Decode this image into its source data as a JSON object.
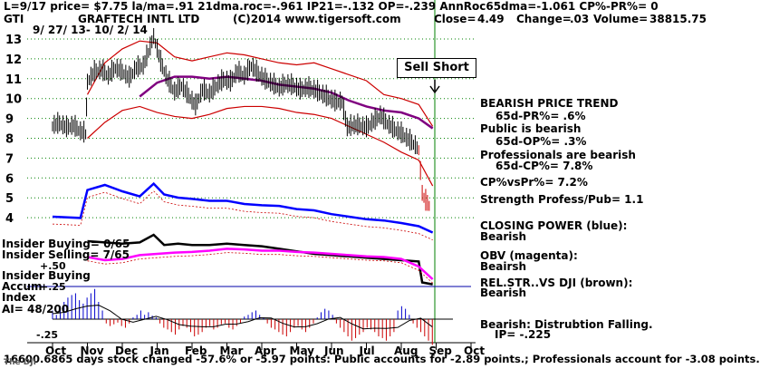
{
  "header": {
    "line1": "L=9/17   price= $7.75  la/ma=.91 21dma.roc=-.961 IP21=-.132 OP=-.239 AnnRoc65dma=-1.061 CP%-PR%=  0",
    "ticker": "GTI",
    "company": "GRAFTECH INTL LTD",
    "copyright": "(C)2014 www.tigersoft.com",
    "close_label": "Close=",
    "close_value": "4.49",
    "change_label": "Change=",
    "change_value": ".03",
    "volume_label": "Volume=",
    "volume_value": "38815.75",
    "date_range": "9/ 27/ 13-  10/ 2/ 14"
  },
  "annotations": {
    "sell_short": "Sell Short"
  },
  "right_panel": [
    {
      "key": "bearish_trend",
      "text": "BEARISH PRICE TREND"
    },
    {
      "key": "pr",
      "text": "65d-PR%= .6%"
    },
    {
      "key": "public",
      "text": "Public is bearish"
    },
    {
      "key": "op",
      "text": "65d-OP%= .3%"
    },
    {
      "key": "professionals",
      "text": "Professionals are bearish"
    },
    {
      "key": "cp",
      "text": "65d-CP%= 7.8%"
    },
    {
      "key": "cpvspr",
      "text": "CP%vsPr%=  7.2%"
    },
    {
      "key": "strength",
      "text": "Strength Profess/Pub= 1.1"
    },
    {
      "key": "closing_power",
      "text": "CLOSING POWER (blue):"
    },
    {
      "key": "closing_power_val",
      "text": "Bearish"
    },
    {
      "key": "obv",
      "text": "OBV (magenta):"
    },
    {
      "key": "obv_val",
      "text": "Beairsh"
    },
    {
      "key": "relstr",
      "text": "REL.STR..VS DJI (brown):"
    },
    {
      "key": "relstr_val",
      "text": "Bearish"
    },
    {
      "key": "distribution",
      "text": "Bearish:  Distrubtion Falling."
    },
    {
      "key": "ip",
      "text": "IP= -.225"
    }
  ],
  "left_panel": {
    "insider_buying": "Insider Buying= 0/65",
    "insider_selling": "Insider Selling= 7/65",
    "plus50": "+.50",
    "insider_buying2": "Insider Buying",
    "accum": "Accum",
    "plus25": "+.25",
    "index": "Index",
    "ai": "AI= 48/200",
    "minus25": "-.25"
  },
  "footer": "16600.6865 days stock changed -57.6% or -5.97 points:  Public accounts for -2.89 points.;  Professionals account for -3.08 points.",
  "footer_overlap": "The DJI",
  "colors": {
    "price_bars": "#000000",
    "bands": "#cc0000",
    "ma": "#800080",
    "grid": "#008000",
    "closing_power": "#0000ff",
    "obv": "#ff00ff",
    "rel_str": "#000000",
    "accum_pos": "#0000cc",
    "accum_neg": "#cc0000"
  },
  "chart_data": {
    "type": "line",
    "price_axis": {
      "ticks": [
        "13",
        "12",
        "11",
        "10",
        "9",
        "8",
        "7",
        "6",
        "5",
        "4"
      ],
      "values": [
        13,
        12,
        11,
        10,
        9,
        8,
        7,
        6,
        5,
        4
      ]
    },
    "months": [
      "Oct",
      "Nov",
      "Dec",
      "Jan",
      "Feb",
      "Mar",
      "Apr",
      "May",
      "Jun",
      "Jul",
      "Aug",
      "Sep",
      "Oct"
    ],
    "price_series": [
      {
        "m": 0.0,
        "v": 8.6
      },
      {
        "m": 0.2,
        "v": 8.7
      },
      {
        "m": 0.4,
        "v": 8.5
      },
      {
        "m": 0.6,
        "v": 8.6
      },
      {
        "m": 0.8,
        "v": 8.3
      },
      {
        "m": 0.95,
        "v": 8.2
      },
      {
        "m": 1.0,
        "v": 10.8
      },
      {
        "m": 1.2,
        "v": 11.3
      },
      {
        "m": 1.4,
        "v": 11.4
      },
      {
        "m": 1.6,
        "v": 11.1
      },
      {
        "m": 1.8,
        "v": 11.5
      },
      {
        "m": 2.0,
        "v": 11.3
      },
      {
        "m": 2.2,
        "v": 11.0
      },
      {
        "m": 2.4,
        "v": 11.5
      },
      {
        "m": 2.6,
        "v": 11.6
      },
      {
        "m": 2.75,
        "v": 12.3
      },
      {
        "m": 2.9,
        "v": 13.1
      },
      {
        "m": 3.1,
        "v": 11.8
      },
      {
        "m": 3.3,
        "v": 10.9
      },
      {
        "m": 3.5,
        "v": 10.3
      },
      {
        "m": 3.7,
        "v": 10.6
      },
      {
        "m": 3.9,
        "v": 10.1
      },
      {
        "m": 4.1,
        "v": 9.6
      },
      {
        "m": 4.3,
        "v": 10.4
      },
      {
        "m": 4.5,
        "v": 10.2
      },
      {
        "m": 4.7,
        "v": 10.6
      },
      {
        "m": 4.9,
        "v": 10.9
      },
      {
        "m": 5.1,
        "v": 10.8
      },
      {
        "m": 5.3,
        "v": 11.3
      },
      {
        "m": 5.5,
        "v": 11.1
      },
      {
        "m": 5.7,
        "v": 11.6
      },
      {
        "m": 5.9,
        "v": 11.2
      },
      {
        "m": 6.1,
        "v": 10.9
      },
      {
        "m": 6.3,
        "v": 10.7
      },
      {
        "m": 6.5,
        "v": 10.5
      },
      {
        "m": 6.7,
        "v": 10.7
      },
      {
        "m": 6.9,
        "v": 10.6
      },
      {
        "m": 7.1,
        "v": 10.4
      },
      {
        "m": 7.3,
        "v": 10.5
      },
      {
        "m": 7.5,
        "v": 10.4
      },
      {
        "m": 7.7,
        "v": 10.2
      },
      {
        "m": 7.9,
        "v": 10.0
      },
      {
        "m": 8.1,
        "v": 9.8
      },
      {
        "m": 8.3,
        "v": 9.8
      },
      {
        "m": 8.45,
        "v": 8.5
      },
      {
        "m": 8.6,
        "v": 8.6
      },
      {
        "m": 8.8,
        "v": 8.6
      },
      {
        "m": 9.0,
        "v": 8.5
      },
      {
        "m": 9.2,
        "v": 8.8
      },
      {
        "m": 9.4,
        "v": 9.1
      },
      {
        "m": 9.6,
        "v": 8.7
      },
      {
        "m": 9.8,
        "v": 8.4
      },
      {
        "m": 10.0,
        "v": 8.2
      },
      {
        "m": 10.2,
        "v": 7.9
      },
      {
        "m": 10.4,
        "v": 7.6
      },
      {
        "m": 10.5,
        "v": 7.4
      },
      {
        "m": 10.6,
        "v": 5.2
      },
      {
        "m": 10.7,
        "v": 4.8
      },
      {
        "m": 10.85,
        "v": 4.49
      }
    ],
    "ma_series": [
      {
        "m": 2.5,
        "v": 10.1
      },
      {
        "m": 3.0,
        "v": 10.8
      },
      {
        "m": 3.5,
        "v": 11.1
      },
      {
        "m": 4.0,
        "v": 11.1
      },
      {
        "m": 4.5,
        "v": 11.0
      },
      {
        "m": 5.0,
        "v": 11.1
      },
      {
        "m": 5.5,
        "v": 11.0
      },
      {
        "m": 6.0,
        "v": 10.9
      },
      {
        "m": 6.5,
        "v": 10.7
      },
      {
        "m": 7.0,
        "v": 10.6
      },
      {
        "m": 7.5,
        "v": 10.5
      },
      {
        "m": 8.0,
        "v": 10.3
      },
      {
        "m": 8.5,
        "v": 9.9
      },
      {
        "m": 9.0,
        "v": 9.6
      },
      {
        "m": 9.5,
        "v": 9.4
      },
      {
        "m": 10.0,
        "v": 9.3
      },
      {
        "m": 10.5,
        "v": 9.0
      },
      {
        "m": 10.9,
        "v": 8.5
      }
    ],
    "upper_band": [
      {
        "m": 1.0,
        "v": 10.2
      },
      {
        "m": 1.5,
        "v": 11.8
      },
      {
        "m": 2.0,
        "v": 12.5
      },
      {
        "m": 2.5,
        "v": 12.9
      },
      {
        "m": 3.0,
        "v": 12.8
      },
      {
        "m": 3.5,
        "v": 12.1
      },
      {
        "m": 4.0,
        "v": 11.9
      },
      {
        "m": 4.5,
        "v": 12.1
      },
      {
        "m": 5.0,
        "v": 12.3
      },
      {
        "m": 5.5,
        "v": 12.2
      },
      {
        "m": 6.0,
        "v": 12.0
      },
      {
        "m": 6.5,
        "v": 11.8
      },
      {
        "m": 7.0,
        "v": 11.7
      },
      {
        "m": 7.5,
        "v": 11.8
      },
      {
        "m": 8.0,
        "v": 11.5
      },
      {
        "m": 8.5,
        "v": 11.2
      },
      {
        "m": 9.0,
        "v": 10.9
      },
      {
        "m": 9.5,
        "v": 10.2
      },
      {
        "m": 10.0,
        "v": 10.0
      },
      {
        "m": 10.5,
        "v": 9.7
      },
      {
        "m": 10.9,
        "v": 8.6
      }
    ],
    "lower_band": [
      {
        "m": 1.0,
        "v": 8.0
      },
      {
        "m": 1.5,
        "v": 8.8
      },
      {
        "m": 2.0,
        "v": 9.4
      },
      {
        "m": 2.5,
        "v": 9.6
      },
      {
        "m": 3.0,
        "v": 9.3
      },
      {
        "m": 3.5,
        "v": 9.1
      },
      {
        "m": 4.0,
        "v": 9.0
      },
      {
        "m": 4.5,
        "v": 9.2
      },
      {
        "m": 5.0,
        "v": 9.5
      },
      {
        "m": 5.5,
        "v": 9.6
      },
      {
        "m": 6.0,
        "v": 9.6
      },
      {
        "m": 6.5,
        "v": 9.5
      },
      {
        "m": 7.0,
        "v": 9.3
      },
      {
        "m": 7.5,
        "v": 9.2
      },
      {
        "m": 8.0,
        "v": 9.0
      },
      {
        "m": 8.5,
        "v": 8.6
      },
      {
        "m": 9.0,
        "v": 8.2
      },
      {
        "m": 9.5,
        "v": 7.8
      },
      {
        "m": 10.0,
        "v": 7.3
      },
      {
        "m": 10.5,
        "v": 6.9
      },
      {
        "m": 10.9,
        "v": 5.6
      }
    ],
    "closing_power": [
      {
        "m": 0.0,
        "v": 0.3
      },
      {
        "m": 0.8,
        "v": 0.28
      },
      {
        "m": 1.0,
        "v": 0.72
      },
      {
        "m": 1.5,
        "v": 0.8
      },
      {
        "m": 2.0,
        "v": 0.7
      },
      {
        "m": 2.5,
        "v": 0.62
      },
      {
        "m": 2.9,
        "v": 0.82
      },
      {
        "m": 3.2,
        "v": 0.65
      },
      {
        "m": 3.6,
        "v": 0.6
      },
      {
        "m": 4.0,
        "v": 0.58
      },
      {
        "m": 4.5,
        "v": 0.55
      },
      {
        "m": 5.0,
        "v": 0.55
      },
      {
        "m": 5.5,
        "v": 0.5
      },
      {
        "m": 6.0,
        "v": 0.48
      },
      {
        "m": 6.5,
        "v": 0.47
      },
      {
        "m": 7.0,
        "v": 0.42
      },
      {
        "m": 7.5,
        "v": 0.4
      },
      {
        "m": 8.0,
        "v": 0.34
      },
      {
        "m": 8.5,
        "v": 0.3
      },
      {
        "m": 9.0,
        "v": 0.26
      },
      {
        "m": 9.5,
        "v": 0.24
      },
      {
        "m": 10.0,
        "v": 0.2
      },
      {
        "m": 10.5,
        "v": 0.15
      },
      {
        "m": 10.9,
        "v": 0.05
      }
    ],
    "obv": [
      {
        "m": 1.0,
        "v": 0.45
      },
      {
        "m": 1.5,
        "v": 0.4
      },
      {
        "m": 2.0,
        "v": 0.42
      },
      {
        "m": 2.5,
        "v": 0.48
      },
      {
        "m": 3.0,
        "v": 0.5
      },
      {
        "m": 3.5,
        "v": 0.52
      },
      {
        "m": 4.0,
        "v": 0.53
      },
      {
        "m": 4.5,
        "v": 0.55
      },
      {
        "m": 5.0,
        "v": 0.58
      },
      {
        "m": 5.5,
        "v": 0.57
      },
      {
        "m": 6.0,
        "v": 0.55
      },
      {
        "m": 6.5,
        "v": 0.55
      },
      {
        "m": 7.0,
        "v": 0.53
      },
      {
        "m": 7.5,
        "v": 0.52
      },
      {
        "m": 8.0,
        "v": 0.5
      },
      {
        "m": 8.5,
        "v": 0.48
      },
      {
        "m": 9.0,
        "v": 0.46
      },
      {
        "m": 9.5,
        "v": 0.45
      },
      {
        "m": 10.0,
        "v": 0.42
      },
      {
        "m": 10.5,
        "v": 0.3
      },
      {
        "m": 10.9,
        "v": 0.1
      }
    ],
    "rel_str": [
      {
        "m": 1.0,
        "v": 0.7
      },
      {
        "m": 1.5,
        "v": 0.68
      },
      {
        "m": 2.0,
        "v": 0.66
      },
      {
        "m": 2.5,
        "v": 0.68
      },
      {
        "m": 2.9,
        "v": 0.8
      },
      {
        "m": 3.2,
        "v": 0.64
      },
      {
        "m": 3.6,
        "v": 0.66
      },
      {
        "m": 4.0,
        "v": 0.64
      },
      {
        "m": 4.5,
        "v": 0.64
      },
      {
        "m": 5.0,
        "v": 0.66
      },
      {
        "m": 5.5,
        "v": 0.64
      },
      {
        "m": 6.0,
        "v": 0.62
      },
      {
        "m": 6.5,
        "v": 0.58
      },
      {
        "m": 7.0,
        "v": 0.54
      },
      {
        "m": 7.5,
        "v": 0.5
      },
      {
        "m": 8.0,
        "v": 0.48
      },
      {
        "m": 8.5,
        "v": 0.46
      },
      {
        "m": 9.0,
        "v": 0.44
      },
      {
        "m": 9.5,
        "v": 0.42
      },
      {
        "m": 10.0,
        "v": 0.4
      },
      {
        "m": 10.5,
        "v": 0.38
      },
      {
        "m": 10.6,
        "v": 0.05
      },
      {
        "m": 10.9,
        "v": 0.02
      }
    ],
    "accum_bars": [
      0.1,
      0.05,
      0.15,
      0.2,
      0.25,
      0.28,
      0.3,
      0.22,
      0.18,
      0.25,
      0.3,
      0.35,
      0.2,
      0.1,
      -0.05,
      -0.08,
      -0.06,
      -0.04,
      -0.08,
      -0.1,
      -0.05,
      0.02,
      0.05,
      0.1,
      0.05,
      0.08,
      0.04,
      0.02,
      -0.05,
      -0.1,
      -0.12,
      -0.15,
      -0.18,
      -0.12,
      -0.08,
      -0.1,
      -0.15,
      -0.2,
      -0.18,
      -0.15,
      -0.1,
      -0.08,
      -0.12,
      -0.1,
      -0.06,
      -0.05,
      -0.1,
      -0.12,
      -0.08,
      -0.05,
      0.03,
      0.05,
      0.08,
      0.1,
      0.05,
      0.02,
      -0.05,
      -0.1,
      -0.12,
      -0.15,
      -0.18,
      -0.2,
      -0.15,
      -0.1,
      -0.08,
      -0.12,
      -0.15,
      -0.1,
      -0.05,
      0.02,
      0.08,
      0.12,
      0.1,
      0.05,
      -0.05,
      -0.1,
      -0.15,
      -0.2,
      -0.25,
      -0.22,
      -0.18,
      -0.15,
      -0.1,
      -0.12,
      -0.15,
      -0.2,
      -0.22,
      -0.25,
      -0.2,
      -0.15,
      0.1,
      0.15,
      0.12,
      0.05,
      -0.05,
      -0.1,
      -0.15,
      -0.2,
      -0.25,
      -0.3
    ]
  }
}
